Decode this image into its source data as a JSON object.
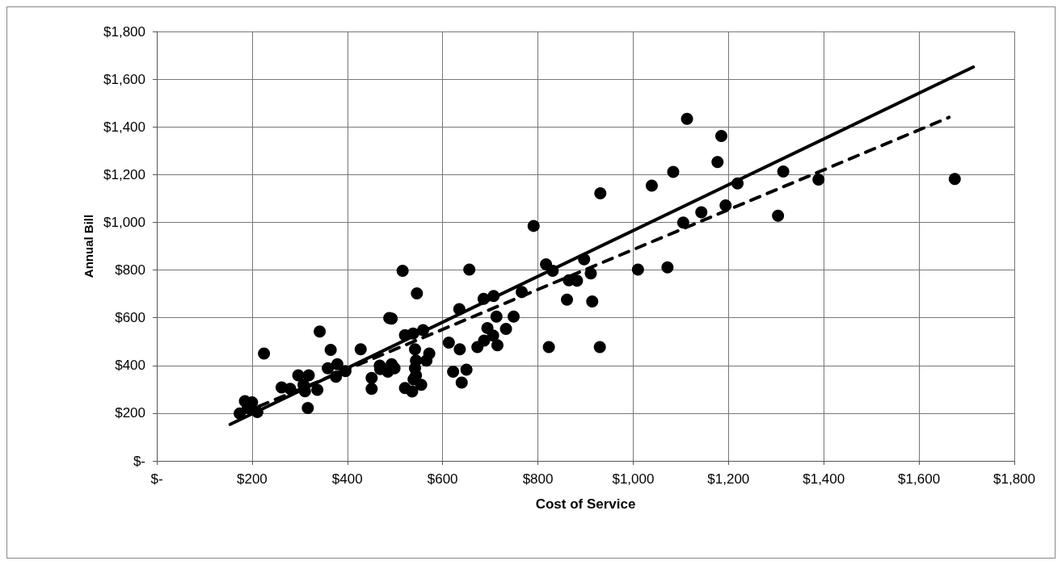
{
  "chart_data": {
    "type": "scatter",
    "xlabel": "Cost of Service",
    "ylabel": "Annual Bill",
    "xlim": [
      0,
      1800
    ],
    "ylim": [
      0,
      1800
    ],
    "xticks": [
      {
        "value": 0,
        "label": "$-"
      },
      {
        "value": 200,
        "label": "$200"
      },
      {
        "value": 400,
        "label": "$400"
      },
      {
        "value": 600,
        "label": "$600"
      },
      {
        "value": 800,
        "label": "$800"
      },
      {
        "value": 1000,
        "label": "$1,000"
      },
      {
        "value": 1200,
        "label": "$1,200"
      },
      {
        "value": 1400,
        "label": "$1,400"
      },
      {
        "value": 1600,
        "label": "$1,600"
      },
      {
        "value": 1800,
        "label": "$1,800"
      }
    ],
    "yticks": [
      {
        "value": 0,
        "label": "$-"
      },
      {
        "value": 200,
        "label": "$200"
      },
      {
        "value": 400,
        "label": "$400"
      },
      {
        "value": 600,
        "label": "$600"
      },
      {
        "value": 800,
        "label": "$800"
      },
      {
        "value": 1000,
        "label": "$1,000"
      },
      {
        "value": 1200,
        "label": "$1,200"
      },
      {
        "value": 1400,
        "label": "$1,400"
      },
      {
        "value": 1600,
        "label": "$1,600"
      },
      {
        "value": 1800,
        "label": "$1,800"
      }
    ],
    "grid": true,
    "marker": "circle",
    "series": [
      {
        "color": "#000000",
        "x": [
          225,
          342,
          365,
          428,
          297,
          319,
          262,
          280,
          308,
          311,
          337,
          317,
          359,
          379,
          376,
          396,
          185,
          200,
          174,
          211,
          191,
          451,
          451,
          468,
          488,
          791,
          516,
          656,
          546,
          817,
          831,
          897,
          911,
          865,
          882,
          861,
          914,
          823,
          930,
          766,
          686,
          707,
          635,
          713,
          749,
          733,
          694,
          706,
          687,
          673,
          715,
          613,
          636,
          622,
          650,
          640,
          493,
          521,
          538,
          559,
          542,
          572,
          566,
          544,
          542,
          544,
          539,
          521,
          536,
          555,
          469,
          485,
          499,
          493,
          1113,
          1185,
          1177,
          1084,
          1039,
          931,
          1219,
          1315,
          1304,
          1194,
          1143,
          1105,
          1010,
          1072,
          1389,
          1675
        ],
        "values": [
          450,
          542,
          465,
          468,
          359,
          359,
          308,
          302,
          319,
          292,
          298,
          222,
          388,
          405,
          353,
          376,
          250,
          245,
          199,
          205,
          222,
          348,
          302,
          399,
          599,
          985,
          797,
          802,
          702,
          824,
          797,
          845,
          786,
          757,
          755,
          676,
          668,
          477,
          477,
          708,
          679,
          691,
          636,
          605,
          605,
          553,
          557,
          525,
          504,
          477,
          485,
          496,
          468,
          374,
          382,
          328,
          596,
          527,
          534,
          548,
          468,
          450,
          420,
          420,
          388,
          359,
          342,
          305,
          291,
          319,
          385,
          374,
          388,
          405,
          1434,
          1362,
          1253,
          1211,
          1154,
          1122,
          1163,
          1213,
          1028,
          1071,
          1042,
          999,
          802,
          811,
          1179,
          1182
        ]
      },
      {
        "type": "line",
        "color": "#000000",
        "line_style": "solid",
        "marker": "none",
        "x": [
          154,
          1714
        ],
        "values": [
          153,
          1651
        ]
      },
      {
        "type": "line",
        "color": "#000000",
        "line_style": "dashed",
        "marker": "none",
        "x": [
          180,
          1663
        ],
        "values": [
          200,
          1440
        ]
      }
    ]
  }
}
